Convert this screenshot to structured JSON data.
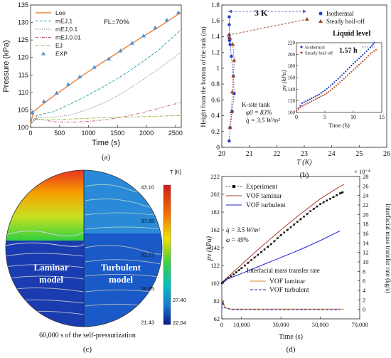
{
  "panel_a": {
    "caption": "(a)",
    "annotation": "FL=70%",
    "ylabel": "Pressure (kPa)",
    "xlabel": "Time (s)",
    "legend": [
      {
        "label": "Lee",
        "color": "#e8813c",
        "dash": ""
      },
      {
        "label": "mEJ,1",
        "color": "#2a9db0",
        "dash": "4,2"
      },
      {
        "label": "mEJ,0.1",
        "color": "#8a8a8a",
        "dash": "1.5,1.5"
      },
      {
        "label": "mEJ,0.01",
        "color": "#c0457a",
        "dash": "4,2,1,2"
      },
      {
        "label": "EJ",
        "color": "#8db030",
        "dash": "4,1.5,1,1.5"
      },
      {
        "label": "EXP",
        "color": "#4a90d9",
        "marker": "triangle"
      }
    ]
  },
  "panel_b": {
    "caption": "(b)",
    "ylabel": "Height from the bottom of the tank (m)",
    "xlabel": "T (K)",
    "annotation_3k": "3 K",
    "annotation_liquid": "Liquid level",
    "site_label": "K-site tank",
    "phi0": "φ0 = 83%",
    "qdot": "q̇ = 3.5 W/m²",
    "legend": [
      {
        "label": "Isothermal",
        "color": "#1e3cc8",
        "marker": "circle"
      },
      {
        "label": "Steady boil-off",
        "color": "#a0402a",
        "marker": "triangle"
      }
    ],
    "inset": {
      "ylabel": "pv (kPa)",
      "xlabel": "Time (h)",
      "annotation": "1.57 h",
      "legend": [
        {
          "label": "Isothermal",
          "color": "#1e3cc8"
        },
        {
          "label": "Steady boil-off",
          "color": "#c0502a"
        }
      ]
    }
  },
  "panel_c": {
    "caption": "(c)",
    "colorbar_title": "T [K]",
    "colorbar_ticks": [
      "43.10",
      "37.68",
      "32.27",
      "26.85",
      "21.43"
    ],
    "colorbar_extra": [
      "27.40",
      "22.04"
    ],
    "label_left": "Laminar model",
    "label_right": "Turbulent model",
    "subtitle": "60,000 s of the self-pressurization"
  },
  "panel_d": {
    "caption": "(d)",
    "ylabel_left": "pv (kPa)",
    "ylabel_right": "Interfacial mass transfer rate (kg/s)",
    "xlabel": "Time (s)",
    "right_exp": "× 10⁻⁴",
    "qdot": "q̇ = 3.5 W/m²",
    "phi": "φ = 49%",
    "legend_top": [
      {
        "label": "Experiment",
        "color": "#111111",
        "marker": "square"
      },
      {
        "label": "VOF laminar",
        "color": "#b03a2e"
      },
      {
        "label": "VOF turbulent",
        "color": "#2222cc"
      }
    ],
    "legend_bottom_title": "Interfacial mass transfer rate",
    "legend_bottom": [
      {
        "label": "VOF laminar",
        "color": "#d4852a"
      },
      {
        "label": "VOF turbulent",
        "color": "#2222cc"
      }
    ]
  },
  "chart_data": [
    {
      "type": "line",
      "panel": "a",
      "xlabel": "Time (s)",
      "ylabel": "Pressure (kPa)",
      "xlim": [
        0,
        2600
      ],
      "ylim": [
        100,
        135
      ],
      "xticks": [
        0,
        500,
        1000,
        1500,
        2000,
        2500
      ],
      "yticks": [
        100,
        105,
        110,
        115,
        120,
        125,
        130,
        135
      ],
      "series": [
        {
          "name": "Lee",
          "x": [
            0,
            50,
            100,
            200,
            400,
            700,
            1000,
            1300,
            1600,
            1900,
            2200,
            2500,
            2600
          ],
          "y": [
            101,
            104.5,
            105.2,
            106.5,
            109,
            112.5,
            116,
            119.2,
            122.4,
            125.6,
            128.6,
            131.8,
            133
          ]
        },
        {
          "name": "mEJ,1",
          "x": [
            0,
            100,
            200,
            400,
            700,
            1000,
            1300,
            1600,
            1900,
            2200,
            2600
          ],
          "y": [
            101,
            103.3,
            103.8,
            104.5,
            106.8,
            109.3,
            112,
            115,
            118.4,
            122,
            128
          ]
        },
        {
          "name": "mEJ,0.1",
          "x": [
            0,
            100,
            200,
            400,
            700,
            1000,
            1300,
            1600,
            1900,
            2200,
            2600
          ],
          "y": [
            101,
            102.8,
            102.8,
            102.9,
            103.6,
            105.2,
            107.3,
            110,
            113.2,
            116.6,
            121.5
          ]
        },
        {
          "name": "mEJ,0.01",
          "x": [
            0,
            100,
            200,
            400,
            700,
            1000,
            1300,
            1600,
            1900,
            2200,
            2600
          ],
          "y": [
            101,
            102.5,
            102.2,
            101.6,
            101.5,
            101.7,
            102.2,
            103,
            104.1,
            105.4,
            107.2
          ]
        },
        {
          "name": "EJ",
          "x": [
            0,
            100,
            200,
            400,
            700,
            1000,
            1500,
            2000,
            2600
          ],
          "y": [
            101,
            102.3,
            102.2,
            102.2,
            102.4,
            102.6,
            102.9,
            103.1,
            103.4
          ]
        },
        {
          "name": "EXP",
          "x": [
            30,
            230,
            450,
            650,
            850,
            1100,
            1350,
            1550,
            1750,
            1950,
            2150,
            2350,
            2550
          ],
          "y": [
            104.2,
            107.4,
            109.8,
            112.3,
            114.5,
            117.2,
            119.6,
            121.9,
            124.1,
            126.2,
            128.5,
            130.7,
            132.8
          ]
        }
      ]
    },
    {
      "type": "scatter",
      "panel": "b",
      "xlabel": "T (K)",
      "ylabel": "Height from the bottom of the tank (m)",
      "xlim": [
        20,
        26
      ],
      "ylim": [
        0,
        1.8
      ],
      "xticks": [
        20,
        21,
        22,
        23,
        24,
        25,
        26
      ],
      "yticks": [
        0,
        0.2,
        0.4,
        0.6,
        0.8,
        1.0,
        1.2,
        1.4,
        1.6,
        1.8
      ],
      "series": [
        {
          "name": "Isothermal",
          "x": [
            20.27,
            20.27,
            20.27,
            20.27,
            20.28,
            20.3,
            20.35,
            20.42,
            20.45,
            20.38,
            20.3,
            20.27
          ],
          "y": [
            1.65,
            1.55,
            1.42,
            1.38,
            1.35,
            1.3,
            1.15,
            0.9,
            0.68,
            0.45,
            0.25,
            0.08
          ]
        },
        {
          "name": "Steady boil-off",
          "x": [
            20.25,
            20.3,
            20.4,
            20.45,
            20.42,
            20.38,
            20.35,
            20.3,
            23.1
          ],
          "y": [
            1.42,
            1.38,
            1.3,
            1.1,
            0.9,
            0.7,
            0.45,
            0.25,
            1.62
          ]
        }
      ]
    },
    {
      "type": "scatter",
      "panel": "b-inset",
      "xlabel": "Time (h)",
      "ylabel": "pv (kPa)",
      "xlim": [
        0,
        15
      ],
      "ylim": [
        100,
        220
      ],
      "xticks": [
        0,
        5,
        10,
        15
      ],
      "yticks": [
        100,
        120,
        140,
        160,
        180,
        200,
        220
      ],
      "series": [
        {
          "name": "Isothermal",
          "x": [
            0,
            1,
            2,
            3,
            4,
            5,
            6,
            7,
            8,
            9,
            10,
            11,
            12,
            13,
            13.7
          ],
          "y": [
            103,
            116,
            121,
            126,
            131,
            138,
            146,
            155,
            164,
            174,
            184,
            193,
            202,
            212,
            220
          ]
        },
        {
          "name": "Steady boil-off",
          "x": [
            0,
            1,
            2,
            3,
            4,
            5,
            6,
            7,
            8,
            9,
            10,
            11,
            12,
            13,
            14
          ],
          "y": [
            103,
            111,
            116,
            121,
            126,
            131,
            138,
            146,
            155,
            164,
            173,
            182,
            191,
            201,
            208
          ]
        }
      ]
    },
    {
      "type": "line",
      "panel": "d",
      "xlabel": "Time (s)",
      "ylabel": "pv (kPa)",
      "y2label": "Interfacial mass transfer rate (kg/s)",
      "xlim": [
        0,
        70000
      ],
      "ylim": [
        62,
        222
      ],
      "y2lim": [
        -2,
        28
      ],
      "xticks": [
        0,
        10000,
        30000,
        50000,
        70000
      ],
      "yticks": [
        62,
        82,
        102,
        122,
        142,
        162,
        182,
        202,
        222
      ],
      "y2ticks": [
        0,
        2,
        4,
        6,
        8,
        10,
        12,
        14,
        16,
        18,
        20,
        22,
        24,
        26,
        28
      ],
      "series": [
        {
          "name": "Experiment",
          "x": [
            0,
            2000,
            6000,
            10000,
            15000,
            20000,
            25000,
            30000,
            35000,
            40000,
            45000,
            50000,
            55000,
            60000,
            62000
          ],
          "y": [
            102,
            106,
            112,
            119,
            128,
            137,
            146,
            156,
            165,
            174,
            183,
            191,
            197,
            203,
            205
          ]
        },
        {
          "name": "VOF laminar",
          "x": [
            0,
            2000,
            10000,
            20000,
            30000,
            40000,
            50000,
            60000,
            62000
          ],
          "y": [
            102,
            107,
            123,
            143,
            162,
            180,
            197,
            211,
            213
          ]
        },
        {
          "name": "VOF turbulent",
          "x": [
            0,
            2000,
            10000,
            20000,
            30000,
            40000,
            50000,
            60000
          ],
          "y": [
            102,
            106,
            113,
            122,
            131,
            140,
            150,
            161
          ]
        },
        {
          "name": "Mass transfer VOF laminar",
          "axis": "right",
          "x": [
            0,
            500,
            1500,
            5000,
            20000,
            40000,
            60000,
            62000
          ],
          "y": [
            0,
            2.0,
            0.4,
            0.05,
            0.05,
            0.05,
            0.05,
            0.05
          ]
        },
        {
          "name": "Mass transfer VOF turbulent",
          "axis": "right",
          "x": [
            0,
            500,
            1500,
            5000,
            20000,
            40000,
            60000
          ],
          "y": [
            0,
            1.6,
            0.3,
            -0.05,
            -0.05,
            -0.05,
            -0.05
          ]
        }
      ]
    }
  ]
}
